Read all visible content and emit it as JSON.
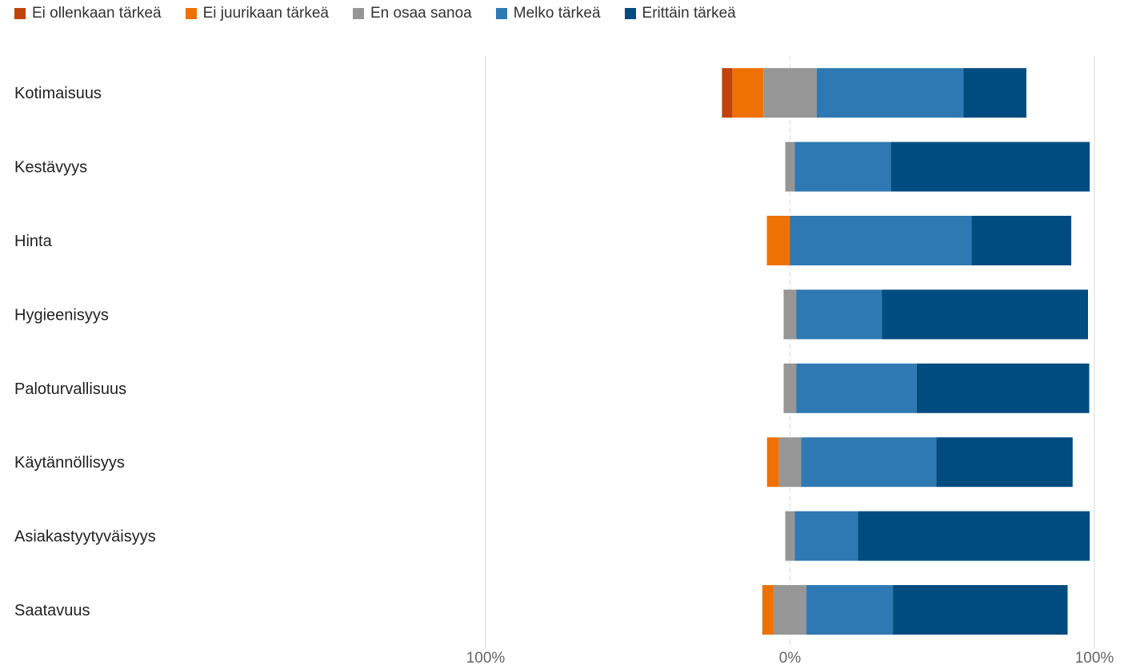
{
  "chart_data": {
    "type": "bar",
    "orientation": "horizontal",
    "stacked": "diverging",
    "categories": [
      "Kotimaisuus",
      "Kestävyys",
      "Hinta",
      "Hygieenisyys",
      "Paloturvallisuus",
      "Käytännöllisyys",
      "Asiakastyytyväisyys",
      "Saatavuus"
    ],
    "series": [
      {
        "name": "Ei ollenkaan tärkeä",
        "color": "#C0420C",
        "values": [
          3.4,
          0,
          0,
          0,
          0,
          0,
          0,
          0
        ]
      },
      {
        "name": "Ei juurikaan tärkeä",
        "color": "#EE7203",
        "values": [
          10.2,
          0,
          7.6,
          0,
          0,
          3.9,
          0,
          3.7
        ]
      },
      {
        "name": "En osaa sanoa",
        "color": "#969696",
        "values": [
          17.5,
          3.1,
          0,
          4.2,
          4.2,
          7.3,
          3.1,
          10.8
        ]
      },
      {
        "name": "Melko tärkeä",
        "color": "#2E79B3",
        "values": [
          48.2,
          31.6,
          59.6,
          28.1,
          39.5,
          44.4,
          20.8,
          28.4
        ]
      },
      {
        "name": "Erittäin tärkeä",
        "color": "#004B80",
        "values": [
          20.7,
          65.3,
          32.8,
          67.7,
          56.7,
          44.8,
          76.1,
          57.4
        ]
      }
    ],
    "negative_series": [
      "Ei ollenkaan tärkeä",
      "Ei juurikaan tärkeä"
    ],
    "neutral_series": "En osaa sanoa",
    "xlim": [
      -100,
      100
    ],
    "xticks": [
      "100%",
      "0%",
      "100%"
    ],
    "legend_position": "top-left",
    "grid": true
  }
}
